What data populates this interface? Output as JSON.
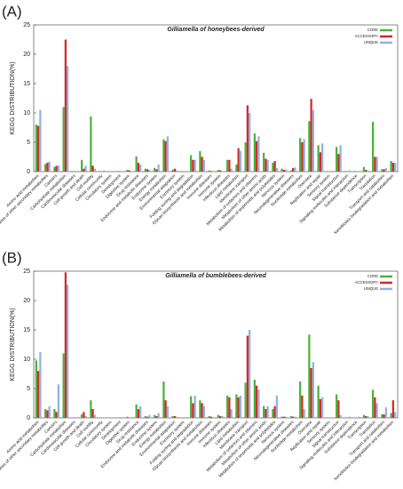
{
  "chart_data": [
    {
      "type": "bar",
      "label": "(A)",
      "title": "Gilliamella of honeybees-derived",
      "ylabel": "KEGG   DISTRIBUTION(%)",
      "categories": [
        "Amino acid metabolism",
        "Biosynthesis of other secondary metabolites",
        "Cancers",
        "Carbohydrate metabolism",
        "Cardiovascular diseases",
        "Cell growth and death",
        "Cell motility",
        "Cellular community",
        "Circulatory system",
        "Development",
        "Digestive system",
        "Drug resistance",
        "Endocrine and metabolic diseases",
        "Endocrine system",
        "Energy metabolism",
        "Environmental adaptation",
        "Excretory system",
        "Folding sorting and degradation",
        "Glycan biosynthesis and metabolism",
        "Immune diseases",
        "Immune system",
        "Infectious diseases",
        "Lipid metabolism",
        "Membrane transport",
        "Metabolism of cofactors and vitamins",
        "Metabolism of other amino acids",
        "Metabolism of terpenoids and polyketides",
        "Nervous system",
        "Neurodegenerative diseases",
        "Nucleotide metabolism",
        "Overview",
        "Replication and repair",
        "Sensory system",
        "Signal transduction",
        "Signaling molecules and interaction",
        "Substance dependence",
        "Transcription",
        "Translation",
        "Transport and catabolism",
        "Xenobiotics biodegradation and metabolism"
      ],
      "series": [
        {
          "name": "CORE",
          "color": "#4db33d",
          "values": [
            8,
            1.3,
            0.8,
            11,
            0.1,
            2,
            9.4,
            0.1,
            0,
            0.1,
            0.3,
            2.6,
            0.5,
            0.6,
            5.5,
            0.3,
            0.1,
            2.8,
            3.5,
            0.2,
            0.3,
            2,
            1.2,
            5,
            6.5,
            3.2,
            1.5,
            0.5,
            0.2,
            5.7,
            8.6,
            4.5,
            0.1,
            4.2,
            0.1,
            0.1,
            0.8,
            8.5,
            0.4,
            1.8
          ]
        },
        {
          "name": "ACCESSORY",
          "color": "#d6282b",
          "values": [
            7.8,
            1.5,
            1,
            22.5,
            0,
            0.5,
            1,
            0,
            0,
            0,
            0.2,
            1.5,
            0.4,
            0.4,
            5.2,
            0.5,
            0,
            2,
            2.5,
            0.1,
            0.2,
            2,
            4,
            11.3,
            5.2,
            2.2,
            1.8,
            0.3,
            0.6,
            5,
            12.4,
            3.3,
            0,
            3,
            0,
            0,
            0.3,
            2.5,
            0.4,
            1.5
          ]
        },
        {
          "name": "UNIQUE",
          "color": "#8fb3e3",
          "values": [
            10.5,
            1.7,
            1,
            18,
            0,
            1,
            0.5,
            0.2,
            0,
            0,
            0,
            1.2,
            0.3,
            1.2,
            6,
            0.2,
            0,
            2,
            2,
            0,
            0.1,
            0.5,
            3.5,
            10,
            6,
            2,
            0.6,
            0.3,
            0.7,
            5.5,
            10.5,
            4.8,
            0,
            4.5,
            0.2,
            0,
            0.2,
            2.5,
            0.6,
            1.5
          ]
        }
      ],
      "ylim": [
        0,
        25
      ],
      "yticks": [
        0,
        5,
        10,
        15,
        20,
        25
      ],
      "legend": "upper right"
    },
    {
      "type": "bar",
      "label": "(B)",
      "title": "Gilliamella of bumblebees-derived",
      "ylabel": "KEGG   DISTRIBUTION(%)",
      "categories": [
        "Amino acid metabolism",
        "Biosynthesis of other secondary metabolites",
        "Cancers",
        "Carbohydrate metabolism",
        "Cardiovascular diseases",
        "Cell growth and death",
        "Cell motility",
        "Cellular community",
        "Circulatory system",
        "Development",
        "Digestive system",
        "Drug resistance",
        "Endocrine and metabolic diseases",
        "Endocrine system",
        "Energy metabolism",
        "Environmental adaptation",
        "Excretory system",
        "Folding sorting and degradation",
        "Glycan biosynthesis and metabolism",
        "Immune diseases",
        "Immune system",
        "Infectious diseases",
        "Lipid metabolism",
        "Membrane transport",
        "Metabolism of cofactors and vitamins",
        "Metabolism of other amino acids",
        "Metabolism of terpenoids and polyketides",
        "Nervous system",
        "Neurodegenerative diseases",
        "Nucleotide metabolism",
        "Overview",
        "Replication and repair",
        "Sensory system",
        "Signal transduction",
        "Signaling molecules and interaction",
        "Substance dependence",
        "Transcription",
        "Translation",
        "Transport and catabolism",
        "Xenobiotics biodegradation and metabolism"
      ],
      "series": [
        {
          "name": "CORE",
          "color": "#4db33d",
          "values": [
            9.8,
            1.5,
            1.5,
            11,
            0,
            0.6,
            3,
            0,
            0,
            0,
            0.2,
            2.3,
            0.3,
            0.5,
            6.2,
            0.3,
            0,
            3.7,
            3,
            0.3,
            0.5,
            3.8,
            4,
            6,
            6.5,
            2,
            1.5,
            0.2,
            0.3,
            6.2,
            14.2,
            5.5,
            0,
            4,
            0,
            0,
            0.5,
            4.8,
            0.6,
            0.8
          ]
        },
        {
          "name": "ACCESSORY",
          "color": "#d6282b",
          "values": [
            8,
            1.3,
            1,
            24.8,
            0,
            1,
            1.5,
            0,
            0,
            0,
            0,
            1.5,
            0.2,
            0.3,
            3,
            0.3,
            0,
            2.5,
            2.5,
            0.2,
            0.3,
            3.5,
            3.5,
            14,
            5.5,
            1.5,
            2,
            0.2,
            0.2,
            3.8,
            8.5,
            3.2,
            0,
            3,
            0,
            0,
            0.3,
            3.5,
            0.6,
            3
          ]
        },
        {
          "name": "UNIQUE",
          "color": "#8fb3e3",
          "values": [
            11.2,
            2,
            5.7,
            22.7,
            0,
            0.3,
            0.5,
            0,
            0,
            0,
            0,
            2,
            0.5,
            0.8,
            2,
            0.2,
            0,
            3.8,
            2,
            0,
            0.3,
            1.5,
            3.8,
            15,
            4.8,
            2,
            3.8,
            0.2,
            0.2,
            1.5,
            9.5,
            3.5,
            0,
            0.5,
            0.2,
            0.2,
            0.3,
            2.5,
            1.8,
            1
          ]
        }
      ],
      "ylim": [
        0,
        25
      ],
      "yticks": [
        0,
        5,
        10,
        15,
        20,
        25
      ],
      "legend": "upper right"
    }
  ]
}
